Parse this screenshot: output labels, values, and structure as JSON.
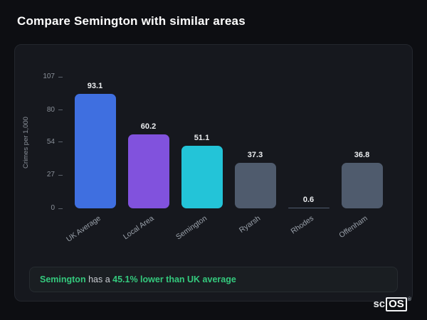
{
  "page": {
    "title": "Compare Semington with similar areas"
  },
  "chart_data": {
    "type": "bar",
    "categories": [
      "UK Average",
      "Local Area",
      "Semington",
      "Ryarsh",
      "Rhodes",
      "Offenham"
    ],
    "values": [
      93.1,
      60.2,
      51.1,
      37.3,
      0.6,
      36.8
    ],
    "colors": [
      "#3f6fe0",
      "#8152dd",
      "#23c4d8",
      "#4f5b6d",
      "#4f5b6d",
      "#4f5b6d"
    ],
    "title": "",
    "xlabel": "",
    "ylabel": "Crimes per 1,000",
    "yticks": [
      107,
      80,
      54,
      27,
      0
    ],
    "ylim": [
      0,
      107
    ],
    "grid": false,
    "legend": false
  },
  "note": {
    "subject": "Semington",
    "middle": " has a ",
    "highlight": "45.1% lower than UK average"
  },
  "footer": {
    "brand_left": "sc",
    "brand_right": "OS",
    "reg": "®"
  }
}
